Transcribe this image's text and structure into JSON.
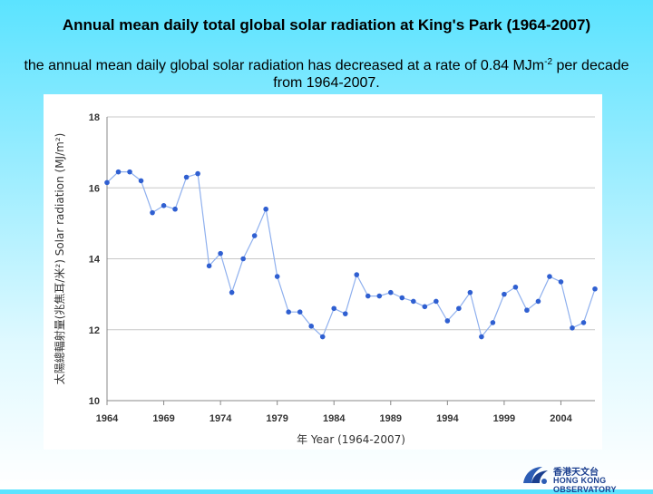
{
  "title": "Annual mean daily total global solar radiation at King's Park (1964-2007)",
  "subtitle": {
    "before": "the annual mean daily global solar radiation has decreased at a rate of 0.84 MJm",
    "sup": "-2",
    "after": " per decade from 1964-2007."
  },
  "logo": {
    "name_cn": "香港天文台",
    "name_en": "HONG KONG OBSERVATORY",
    "colors": {
      "primary": "#1b3f8f",
      "secondary": "#2d5db5"
    }
  },
  "chart_data": {
    "type": "line",
    "xlabel": "年 Year (1964-2007)",
    "ylabel": "太陽總輻射量(兆焦耳/米²) Solar radiation (MJ/m²)",
    "xlim": [
      1964,
      2007
    ],
    "ylim": [
      10,
      18
    ],
    "x_ticks": [
      1964,
      1969,
      1974,
      1979,
      1984,
      1989,
      1994,
      1999,
      2004
    ],
    "y_ticks": [
      10,
      12,
      14,
      16,
      18
    ],
    "grid": true,
    "legend": "none",
    "series_color": "#2f5fd1",
    "series": [
      {
        "x": [
          1964,
          1965,
          1966,
          1967,
          1968,
          1969,
          1970,
          1971,
          1972,
          1973,
          1974,
          1975,
          1976,
          1977,
          1978,
          1979,
          1980,
          1981,
          1982,
          1983,
          1984,
          1985,
          1986,
          1987,
          1988,
          1989,
          1990,
          1991,
          1992,
          1993,
          1994,
          1995,
          1996,
          1997,
          1998,
          1999,
          2000,
          2001,
          2002,
          2003,
          2004,
          2005,
          2006,
          2007
        ],
        "values": [
          16.15,
          16.45,
          16.45,
          16.2,
          15.3,
          15.5,
          15.4,
          16.3,
          16.4,
          13.8,
          14.15,
          13.05,
          14.0,
          14.65,
          15.4,
          13.5,
          12.5,
          12.5,
          12.1,
          11.8,
          12.6,
          12.45,
          13.55,
          12.95,
          12.95,
          13.05,
          12.9,
          12.8,
          12.65,
          12.8,
          12.25,
          12.6,
          13.05,
          11.8,
          12.2,
          13.0,
          13.2,
          12.55,
          12.8,
          13.5,
          13.35,
          12.05,
          12.2,
          13.15
        ]
      }
    ]
  }
}
